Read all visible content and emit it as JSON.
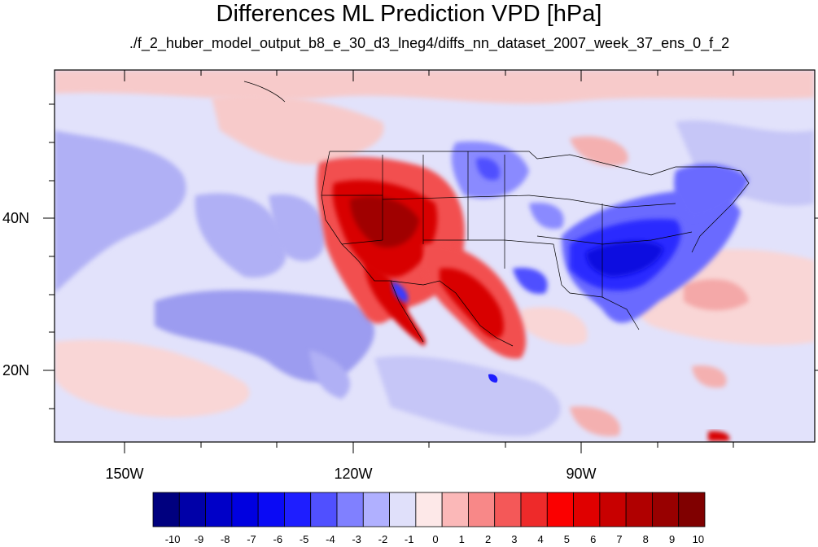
{
  "title": "Differences ML Prediction VPD [hPa]",
  "subtitle": "./f_2_huber_model_output_b8_e_30_d3_lneg4/diffs_nn_dataset_2007_week_37_ens_0_f_2",
  "x_ticks": [
    "150W",
    "120W",
    "90W"
  ],
  "y_ticks": [
    "40N",
    "20N"
  ],
  "colorbar": {
    "labels": [
      "-10",
      "-9",
      "-8",
      "-7",
      "-6",
      "-5",
      "-4",
      "-3",
      "-2",
      "-1",
      "0",
      "1",
      "2",
      "3",
      "4",
      "5",
      "6",
      "7",
      "8",
      "9",
      "10"
    ],
    "colors": [
      "#00007f",
      "#0000a8",
      "#0000c8",
      "#0000e0",
      "#0a0af5",
      "#1e1eff",
      "#5050ff",
      "#8080ff",
      "#b0b0ff",
      "#e0e0fa",
      "#fde8e8",
      "#fbb8b8",
      "#f88888",
      "#f45858",
      "#ee2a2a",
      "#fb0000",
      "#e00000",
      "#c80000",
      "#b00000",
      "#980000",
      "#800000"
    ]
  },
  "map_data": {
    "extent_lon": [
      -160,
      -60
    ],
    "extent_lat": [
      10,
      60
    ],
    "background_value_range": [
      -1,
      1
    ],
    "regions": [
      {
        "name": "US Southwest / Great Basin",
        "sign": "positive",
        "max_abs": 10
      },
      {
        "name": "Texas / northern Mexico",
        "sign": "positive",
        "max_abs": 7
      },
      {
        "name": "Baja California / Gulf of California",
        "sign": "mixed",
        "max_abs": 8
      },
      {
        "name": "US Southeast / Appalachians",
        "sign": "negative",
        "max_abs": 5
      },
      {
        "name": "Northern Plains",
        "sign": "negative",
        "max_abs": 3
      },
      {
        "name": "Eastern Pacific",
        "sign": "negative",
        "max_abs": 3
      },
      {
        "name": "Western Atlantic",
        "sign": "positive",
        "max_abs": 3
      }
    ]
  }
}
